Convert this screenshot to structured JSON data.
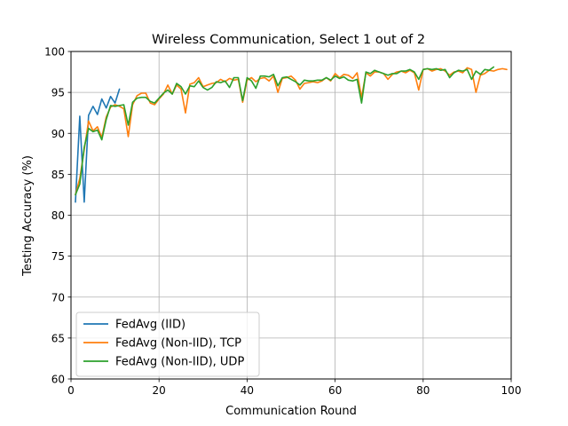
{
  "chart_data": {
    "type": "line",
    "title": "Wireless Communication, Select 1 out of 2",
    "xlabel": "Communication Round",
    "ylabel": "Testing Accuracy (%)",
    "xlim": [
      0,
      100
    ],
    "ylim": [
      60,
      100
    ],
    "xticks": [
      0,
      20,
      40,
      60,
      80,
      100
    ],
    "yticks": [
      60,
      65,
      70,
      75,
      80,
      85,
      90,
      95,
      100
    ],
    "grid": true,
    "legend_position": "lower-left",
    "series": [
      {
        "name": "FedAvg (IID)",
        "color": "#1f77b4",
        "x": [
          1,
          2,
          3,
          4,
          5,
          6,
          7,
          8,
          9,
          10,
          11
        ],
        "y": [
          81.6,
          92.1,
          81.6,
          92.2,
          93.3,
          92.3,
          94.2,
          93.1,
          94.5,
          93.7,
          95.4
        ]
      },
      {
        "name": "FedAvg (Non-IID), TCP",
        "color": "#ff7f0e",
        "x": [
          1,
          2,
          3,
          4,
          5,
          6,
          7,
          8,
          9,
          10,
          11,
          12,
          13,
          14,
          15,
          16,
          17,
          18,
          19,
          20,
          21,
          22,
          23,
          24,
          25,
          26,
          27,
          28,
          29,
          30,
          31,
          32,
          33,
          34,
          35,
          36,
          37,
          38,
          39,
          40,
          41,
          42,
          43,
          44,
          45,
          46,
          47,
          48,
          49,
          50,
          51,
          52,
          53,
          54,
          55,
          56,
          57,
          58,
          59,
          60,
          61,
          62,
          63,
          64,
          65,
          66,
          67,
          68,
          69,
          70,
          71,
          72,
          73,
          74,
          75,
          76,
          77,
          78,
          79,
          80,
          81,
          82,
          83,
          84,
          85,
          86,
          87,
          88,
          89,
          90,
          91,
          92,
          93,
          94,
          95,
          96,
          97,
          98,
          99
        ],
        "y": [
          82.5,
          84.5,
          88.0,
          91.5,
          90.3,
          90.8,
          89.5,
          92.0,
          93.2,
          93.5,
          93.3,
          93.0,
          89.6,
          93.5,
          94.6,
          94.9,
          94.9,
          93.7,
          93.5,
          94.2,
          94.8,
          95.9,
          94.8,
          95.9,
          95.4,
          92.5,
          96.0,
          96.2,
          96.8,
          95.7,
          95.9,
          96.1,
          96.2,
          96.6,
          96.3,
          96.7,
          96.5,
          96.6,
          93.8,
          96.5,
          96.8,
          96.3,
          96.7,
          96.8,
          96.4,
          97.0,
          95.0,
          96.7,
          96.8,
          97.0,
          96.5,
          95.4,
          96.1,
          96.2,
          96.3,
          96.2,
          96.4,
          96.8,
          96.4,
          97.3,
          96.8,
          97.2,
          97.1,
          96.7,
          97.4,
          94.4,
          97.4,
          97.0,
          97.5,
          97.5,
          97.3,
          96.6,
          97.2,
          97.5,
          97.6,
          97.4,
          97.7,
          97.4,
          95.3,
          97.8,
          97.9,
          97.6,
          97.8,
          97.9,
          97.6,
          97.1,
          97.5,
          97.6,
          97.4,
          98.0,
          97.8,
          95.0,
          97.1,
          97.3,
          97.7,
          97.6,
          97.8,
          97.9,
          97.8
        ]
      },
      {
        "name": "FedAvg (Non-IID), UDP",
        "color": "#2ca02c",
        "x": [
          1,
          2,
          3,
          4,
          5,
          6,
          7,
          8,
          9,
          10,
          11,
          12,
          13,
          14,
          15,
          16,
          17,
          18,
          19,
          20,
          21,
          22,
          23,
          24,
          25,
          26,
          27,
          28,
          29,
          30,
          31,
          32,
          33,
          34,
          35,
          36,
          37,
          38,
          39,
          40,
          41,
          42,
          43,
          44,
          45,
          46,
          47,
          48,
          49,
          50,
          51,
          52,
          53,
          54,
          55,
          56,
          57,
          58,
          59,
          60,
          61,
          62,
          63,
          64,
          65,
          66,
          67,
          68,
          69,
          70,
          71,
          72,
          73,
          74,
          75,
          76,
          77,
          78,
          79,
          80,
          81,
          82,
          83,
          84,
          85,
          86,
          87,
          88,
          89,
          90,
          91,
          92,
          93,
          94,
          95,
          96
        ],
        "y": [
          82.5,
          83.8,
          88.3,
          90.6,
          90.2,
          90.4,
          89.2,
          91.7,
          93.4,
          93.3,
          93.4,
          93.5,
          91.0,
          93.8,
          94.3,
          94.4,
          94.4,
          93.9,
          93.7,
          94.3,
          94.9,
          95.3,
          94.8,
          96.1,
          95.7,
          94.8,
          95.8,
          95.7,
          96.4,
          95.6,
          95.3,
          95.6,
          96.3,
          96.2,
          96.4,
          95.6,
          96.8,
          96.8,
          94.0,
          96.8,
          96.4,
          95.5,
          97.0,
          97.0,
          96.9,
          97.2,
          95.8,
          96.8,
          96.9,
          96.6,
          96.3,
          95.9,
          96.5,
          96.4,
          96.4,
          96.5,
          96.5,
          96.8,
          96.5,
          97.0,
          96.7,
          96.9,
          96.5,
          96.4,
          96.6,
          93.7,
          97.5,
          97.3,
          97.7,
          97.5,
          97.3,
          97.1,
          97.3,
          97.3,
          97.6,
          97.6,
          97.8,
          97.5,
          96.6,
          97.8,
          97.9,
          97.8,
          97.9,
          97.7,
          97.8,
          96.8,
          97.4,
          97.7,
          97.6,
          97.8,
          96.6,
          97.6,
          97.2,
          97.8,
          97.7,
          98.1
        ]
      }
    ]
  }
}
